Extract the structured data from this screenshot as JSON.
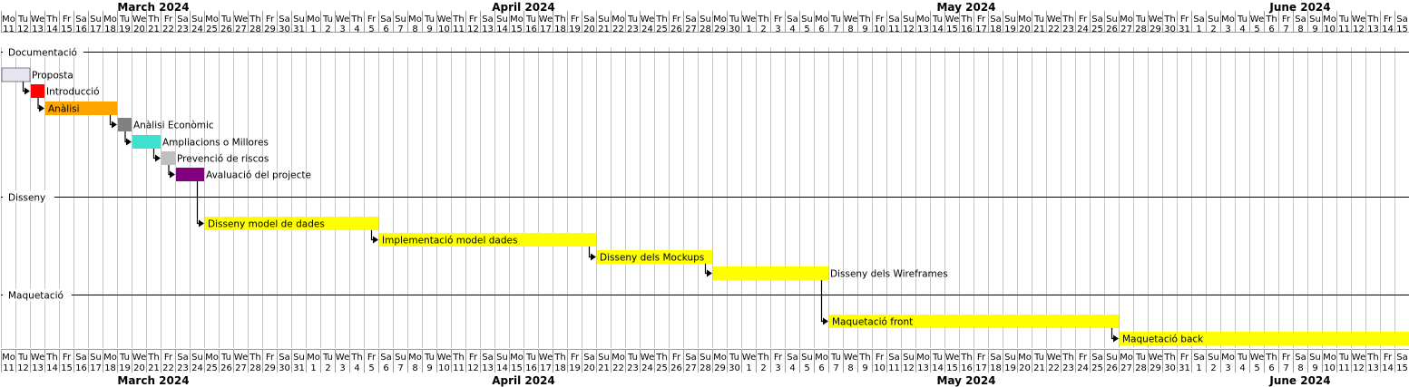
{
  "chart_data": {
    "type": "gantt",
    "start_date": "2024-03-11",
    "end_date": "2024-06-15",
    "months": [
      {
        "label": "March 2024",
        "start": "2024-03-11",
        "end": "2024-03-31"
      },
      {
        "label": "April 2024",
        "start": "2024-04-01",
        "end": "2024-04-30"
      },
      {
        "label": "May 2024",
        "start": "2024-05-01",
        "end": "2024-05-31"
      },
      {
        "label": "June 2024",
        "start": "2024-06-01",
        "end": "2024-06-15"
      }
    ],
    "weekday_labels": [
      "Mo",
      "Tu",
      "We",
      "Th",
      "Fr",
      "Sa",
      "Su"
    ],
    "separators": [
      {
        "label": "Documentació",
        "before_task": 0
      },
      {
        "label": "Disseny",
        "before_task": 7
      },
      {
        "label": "Maquetació",
        "before_task": 11
      }
    ],
    "tasks": [
      {
        "name": "Proposta",
        "start": "2024-03-11",
        "end": "2024-03-12",
        "color": "#E6E6F0",
        "label_inside": false
      },
      {
        "name": "Introducció",
        "start": "2024-03-13",
        "end": "2024-03-13",
        "color": "#FF0000",
        "label_inside": false
      },
      {
        "name": "Anàlisi",
        "start": "2024-03-14",
        "end": "2024-03-18",
        "color": "#FFA500",
        "label_inside": true
      },
      {
        "name": "Anàlisi Econòmic",
        "start": "2024-03-19",
        "end": "2024-03-19",
        "color": "#808080",
        "label_inside": false
      },
      {
        "name": "Ampliacions o Millores",
        "start": "2024-03-20",
        "end": "2024-03-21",
        "color": "#40E0D0",
        "label_inside": false
      },
      {
        "name": "Prevenció de riscos",
        "start": "2024-03-22",
        "end": "2024-03-22",
        "color": "#C0C0C0",
        "label_inside": false
      },
      {
        "name": "Avaluació del projecte",
        "start": "2024-03-23",
        "end": "2024-03-24",
        "color": "#800080",
        "label_inside": false
      },
      {
        "name": "Disseny model de dades",
        "start": "2024-03-25",
        "end": "2024-04-05",
        "color": "#FFFF00",
        "label_inside": true
      },
      {
        "name": "Implementació model dades",
        "start": "2024-04-06",
        "end": "2024-04-20",
        "color": "#FFFF00",
        "label_inside": true
      },
      {
        "name": "Disseny dels Mockups",
        "start": "2024-04-21",
        "end": "2024-04-28",
        "color": "#FFFF00",
        "label_inside": true
      },
      {
        "name": "Disseny dels Wireframes",
        "start": "2024-04-29",
        "end": "2024-05-06",
        "color": "#FFFF00",
        "label_inside": false
      },
      {
        "name": "Maquetació front",
        "start": "2024-05-07",
        "end": "2024-05-26",
        "color": "#FFFF00",
        "label_inside": true
      },
      {
        "name": "Maquetació back",
        "start": "2024-05-27",
        "end": "2024-06-15",
        "color": "#FFFF00",
        "label_inside": true
      }
    ],
    "dependencies": [
      [
        0,
        1
      ],
      [
        1,
        2
      ],
      [
        2,
        3
      ],
      [
        3,
        4
      ],
      [
        4,
        5
      ],
      [
        5,
        6
      ],
      [
        6,
        7
      ],
      [
        7,
        8
      ],
      [
        8,
        9
      ],
      [
        9,
        10
      ],
      [
        10,
        11
      ],
      [
        11,
        12
      ]
    ]
  }
}
